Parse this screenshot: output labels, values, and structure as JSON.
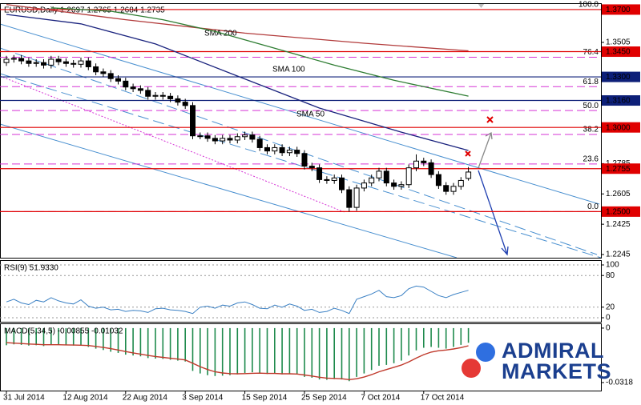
{
  "chart_data": [
    {
      "type": "candlestick",
      "title": "EURUSD,Daily  1.2697 1.2765 1.2684 1.2735",
      "x_labels": [
        {
          "value": 0,
          "label": "31 Jul 2014"
        },
        {
          "value": 8,
          "label": "12 Aug 2014"
        },
        {
          "value": 16,
          "label": "22 Aug 2014"
        },
        {
          "value": 24,
          "label": "3 Sep 2014"
        },
        {
          "value": 32,
          "label": "15 Sep 2014"
        },
        {
          "value": 40,
          "label": "25 Sep 2014"
        },
        {
          "value": 48,
          "label": "7 Oct 2014"
        },
        {
          "value": 56,
          "label": "17 Oct 2014"
        }
      ],
      "open": [
        1.3385,
        1.3405,
        1.341,
        1.3395,
        1.338,
        1.3385,
        1.337,
        1.3405,
        1.339,
        1.338,
        1.3375,
        1.3395,
        1.336,
        1.333,
        1.332,
        1.329,
        1.3275,
        1.324,
        1.323,
        1.322,
        1.3185,
        1.319,
        1.3185,
        1.317,
        1.315,
        1.313,
        1.295,
        1.295,
        1.2935,
        1.292,
        1.2935,
        1.2925,
        1.2945,
        1.2955,
        1.293,
        1.288,
        1.286,
        1.288,
        1.285,
        1.2865,
        1.2845,
        1.277,
        1.276,
        1.269,
        1.2685,
        1.27,
        1.263,
        1.2525,
        1.264,
        1.267,
        1.27,
        1.274,
        1.267,
        1.265,
        1.266,
        1.276,
        1.28,
        1.279,
        1.272,
        1.2655,
        1.262,
        1.265,
        1.2697
      ],
      "high": [
        1.3425,
        1.343,
        1.343,
        1.3415,
        1.3405,
        1.3405,
        1.3425,
        1.3425,
        1.341,
        1.34,
        1.3415,
        1.3415,
        1.338,
        1.335,
        1.334,
        1.331,
        1.3295,
        1.326,
        1.325,
        1.324,
        1.321,
        1.321,
        1.3205,
        1.319,
        1.317,
        1.315,
        1.297,
        1.297,
        1.2955,
        1.2955,
        1.2955,
        1.2965,
        1.2975,
        1.2975,
        1.295,
        1.29,
        1.29,
        1.29,
        1.2885,
        1.2885,
        1.2865,
        1.279,
        1.278,
        1.271,
        1.272,
        1.272,
        1.265,
        1.266,
        1.269,
        1.272,
        1.276,
        1.276,
        1.269,
        1.268,
        1.278,
        1.284,
        1.282,
        1.281,
        1.274,
        1.2675,
        1.267,
        1.2705,
        1.2765
      ],
      "low": [
        1.3365,
        1.3385,
        1.3375,
        1.336,
        1.336,
        1.335,
        1.335,
        1.337,
        1.336,
        1.3355,
        1.3355,
        1.334,
        1.331,
        1.33,
        1.327,
        1.3255,
        1.322,
        1.321,
        1.32,
        1.3165,
        1.3165,
        1.3165,
        1.315,
        1.313,
        1.311,
        1.293,
        1.293,
        1.2915,
        1.29,
        1.29,
        1.2905,
        1.2905,
        1.2925,
        1.291,
        1.286,
        1.284,
        1.284,
        1.283,
        1.283,
        1.2825,
        1.275,
        1.274,
        1.267,
        1.2665,
        1.2665,
        1.261,
        1.25,
        1.2505,
        1.262,
        1.265,
        1.268,
        1.265,
        1.263,
        1.263,
        1.264,
        1.274,
        1.277,
        1.27,
        1.2635,
        1.26,
        1.26,
        1.263,
        1.2684
      ],
      "close": [
        1.3405,
        1.341,
        1.3395,
        1.338,
        1.3385,
        1.337,
        1.3405,
        1.339,
        1.338,
        1.3375,
        1.3395,
        1.336,
        1.333,
        1.332,
        1.329,
        1.3275,
        1.324,
        1.323,
        1.322,
        1.3185,
        1.319,
        1.3185,
        1.317,
        1.315,
        1.313,
        1.295,
        1.295,
        1.2935,
        1.292,
        1.2935,
        1.2925,
        1.2945,
        1.2955,
        1.293,
        1.288,
        1.286,
        1.288,
        1.285,
        1.2865,
        1.2845,
        1.277,
        1.276,
        1.269,
        1.2685,
        1.27,
        1.263,
        1.2525,
        1.264,
        1.267,
        1.27,
        1.274,
        1.267,
        1.265,
        1.266,
        1.276,
        1.28,
        1.279,
        1.272,
        1.2655,
        1.262,
        1.265,
        1.2685,
        1.2735
      ],
      "ylim": [
        1.2226,
        1.3733
      ],
      "yticks": [
        1.3505,
        1.2785,
        1.2605,
        1.2425,
        1.2245
      ],
      "lines": [
        {
          "name": "SMA 200",
          "color": "#b23b3b",
          "x": [
            0,
            16,
            32,
            48,
            62
          ],
          "values": [
            1.373,
            1.364,
            1.356,
            1.35,
            1.3455
          ]
        },
        {
          "name": "SMA 100",
          "color": "#2e7d32",
          "x": [
            6,
            14,
            21,
            28,
            36,
            44,
            52,
            62
          ],
          "values": [
            1.371,
            1.369,
            1.364,
            1.357,
            1.347,
            1.337,
            1.328,
            1.3186
          ]
        },
        {
          "name": "SMA 50",
          "color": "#1a237e",
          "x": [
            0,
            10,
            20,
            31,
            42,
            53,
            62
          ],
          "values": [
            1.3671,
            1.3615,
            1.3496,
            1.3305,
            1.3115,
            1.2972,
            1.2863
          ]
        }
      ],
      "levels": [
        {
          "value": 1.37,
          "label": "1.3700",
          "color": "#e00000"
        },
        {
          "value": 1.345,
          "label": "1.3450",
          "color": "#e00000"
        },
        {
          "value": 1.33,
          "label": "1.3300",
          "color": "#0d1f78"
        },
        {
          "value": 1.316,
          "label": "1.3160",
          "color": "#0d1f78"
        },
        {
          "value": 1.3,
          "label": "1.3000",
          "color": "#e00000"
        },
        {
          "value": 1.2755,
          "label": "1.2755",
          "color": "#e00000"
        },
        {
          "value": 1.25,
          "label": "1.2500",
          "color": "#e00000"
        }
      ],
      "fibonacci": {
        "color": "#d633d6",
        "levels": [
          {
            "value": 1.37,
            "label": "100.0"
          },
          {
            "value": 1.3417,
            "label": "76.4"
          },
          {
            "value": 1.3242,
            "label": "61.8"
          },
          {
            "value": 1.31,
            "label": "50.0"
          },
          {
            "value": 1.2958,
            "label": "38.2"
          },
          {
            "value": 1.2783,
            "label": "23.6"
          },
          {
            "value": 1.25,
            "label": "0.0"
          }
        ]
      }
    },
    {
      "type": "line",
      "title": "RSI(9) 51.9330",
      "color": "#3a80c4",
      "values": [
        30,
        35,
        28,
        25,
        33,
        30,
        38,
        32,
        28,
        26,
        34,
        22,
        18,
        20,
        15,
        16,
        12,
        14,
        13,
        10,
        17,
        18,
        15,
        14,
        12,
        8,
        20,
        22,
        18,
        24,
        22,
        28,
        30,
        25,
        18,
        17,
        24,
        20,
        26,
        22,
        14,
        16,
        10,
        12,
        18,
        14,
        8,
        35,
        40,
        45,
        52,
        40,
        38,
        42,
        55,
        60,
        58,
        50,
        42,
        38,
        44,
        48,
        51.933
      ],
      "ylim": [
        -7.6,
        107.6
      ],
      "yticks": [
        100,
        80,
        20,
        0
      ]
    },
    {
      "type": "macd",
      "title": "MACD(5,34,5) -0.00855 -0.01032",
      "hist_color": "#1e8a4c",
      "signal_color": "#c0392b",
      "histogram": [
        -0.01,
        -0.0095,
        -0.0098,
        -0.0102,
        -0.01,
        -0.0105,
        -0.0098,
        -0.0097,
        -0.01,
        -0.0102,
        -0.01,
        -0.011,
        -0.012,
        -0.0128,
        -0.0138,
        -0.0145,
        -0.0155,
        -0.016,
        -0.0165,
        -0.0175,
        -0.0178,
        -0.018,
        -0.0185,
        -0.019,
        -0.0195,
        -0.025,
        -0.0265,
        -0.0275,
        -0.028,
        -0.0278,
        -0.0275,
        -0.027,
        -0.0262,
        -0.0258,
        -0.0262,
        -0.0268,
        -0.0265,
        -0.027,
        -0.0268,
        -0.027,
        -0.0285,
        -0.029,
        -0.03,
        -0.0302,
        -0.0298,
        -0.03,
        -0.031,
        -0.0285,
        -0.0265,
        -0.0245,
        -0.022,
        -0.0215,
        -0.0205,
        -0.019,
        -0.016,
        -0.013,
        -0.0115,
        -0.011,
        -0.0115,
        -0.012,
        -0.011,
        -0.0098,
        -0.00855
      ],
      "signal": [
        -0.0085,
        -0.0088,
        -0.009,
        -0.0093,
        -0.0095,
        -0.0097,
        -0.0097,
        -0.0097,
        -0.0098,
        -0.0099,
        -0.01,
        -0.0102,
        -0.0107,
        -0.0113,
        -0.012,
        -0.0128,
        -0.0137,
        -0.0145,
        -0.0152,
        -0.016,
        -0.0166,
        -0.0171,
        -0.0176,
        -0.0181,
        -0.0186,
        -0.0205,
        -0.0225,
        -0.0242,
        -0.0255,
        -0.0262,
        -0.0266,
        -0.0267,
        -0.0266,
        -0.0264,
        -0.0263,
        -0.0265,
        -0.0265,
        -0.0267,
        -0.0267,
        -0.0268,
        -0.0274,
        -0.028,
        -0.0287,
        -0.0292,
        -0.0294,
        -0.0296,
        -0.0301,
        -0.0296,
        -0.0286,
        -0.0272,
        -0.0255,
        -0.0242,
        -0.0229,
        -0.0216,
        -0.0197,
        -0.0175,
        -0.0155,
        -0.014,
        -0.0132,
        -0.0128,
        -0.0122,
        -0.0114,
        -0.01032
      ],
      "ylim": [
        -0.0365,
        0.0023
      ],
      "yticks": [
        0,
        -0.0318
      ]
    }
  ],
  "logo": [
    "ADMIRAL",
    "MARKETS"
  ]
}
